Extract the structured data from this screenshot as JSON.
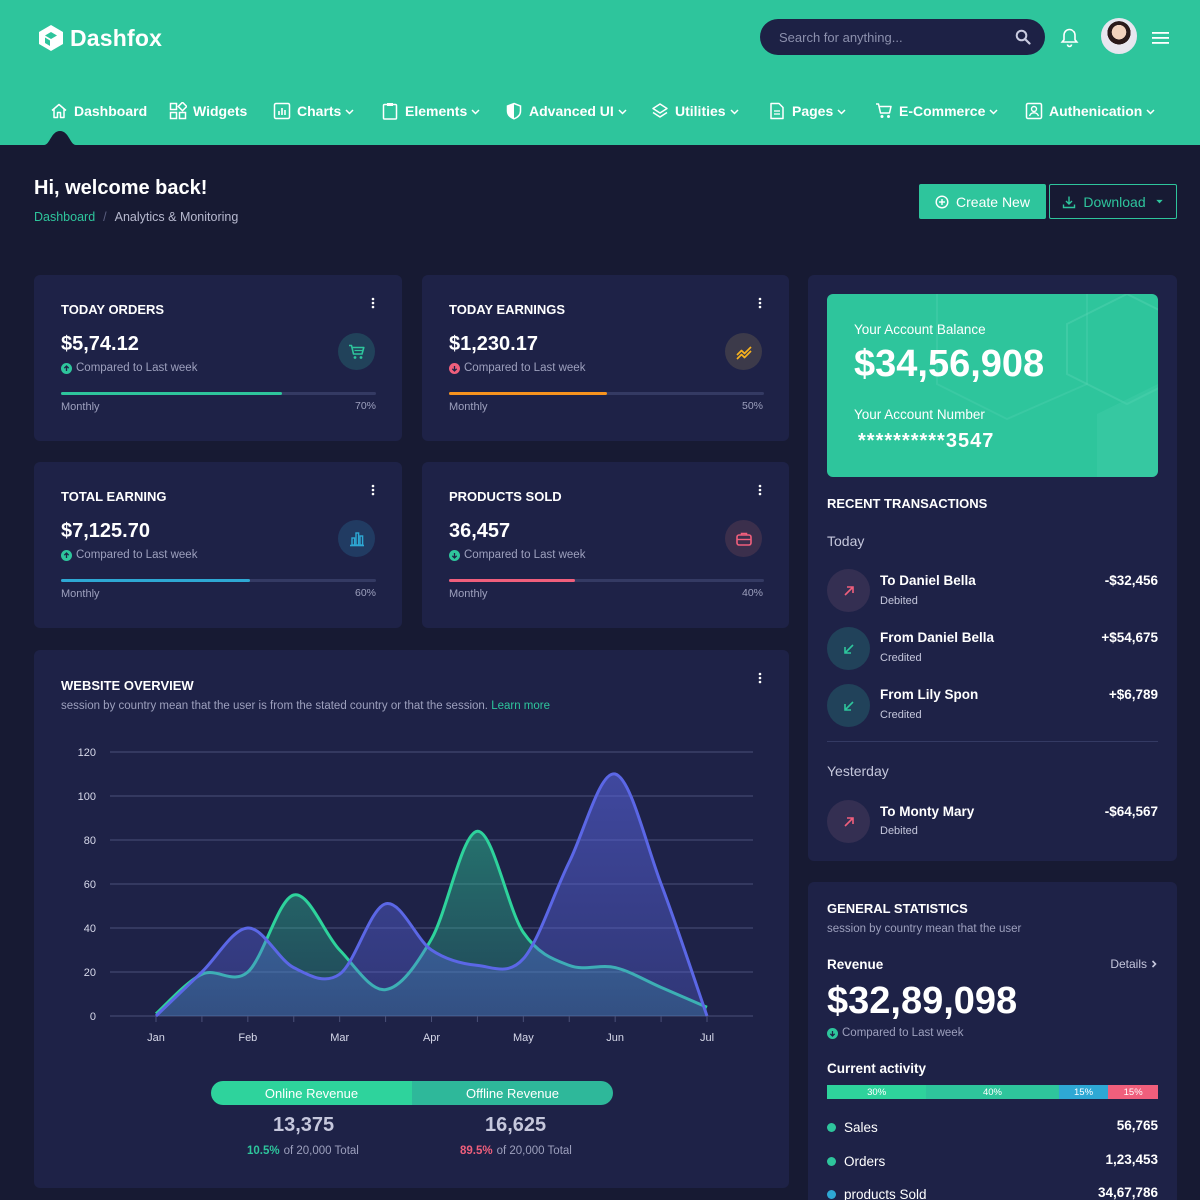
{
  "brand": {
    "name": "Dashfox"
  },
  "search": {
    "placeholder": "Search for anything..."
  },
  "nav": [
    {
      "label": "Dashboard",
      "icon": "home-icon"
    },
    {
      "label": "Widgets",
      "icon": "widgets-icon"
    },
    {
      "label": "Charts",
      "icon": "charts-icon"
    },
    {
      "label": "Elements",
      "icon": "clipboard-icon"
    },
    {
      "label": "Advanced UI",
      "icon": "shield-icon"
    },
    {
      "label": "Utilities",
      "icon": "layers-icon"
    },
    {
      "label": "Pages",
      "icon": "document-icon"
    },
    {
      "label": "E-Commerce",
      "icon": "cart-icon"
    },
    {
      "label": "Authenication",
      "icon": "user-icon"
    }
  ],
  "page": {
    "title": "Hi, welcome back!",
    "breadcrumb": [
      "Dashboard",
      "Analytics & Monitoring"
    ],
    "create_label": "Create New",
    "download_label": "Download"
  },
  "stats": [
    {
      "title": "TODAY ORDERS",
      "value": "$5,74.12",
      "compare": "Compared to Last week",
      "trend": "up",
      "bar_label": "Monthly",
      "percent_label": "70%",
      "percent": 70,
      "color": "#2ec59c",
      "icon": "cart-icon"
    },
    {
      "title": "TODAY EARNINGS",
      "value": "$1,230.17",
      "compare": "Compared to Last week",
      "trend": "down",
      "bar_label": "Monthly",
      "percent_label": "50%",
      "percent": 50,
      "color": "#f7931e",
      "icon": "trend-icon"
    },
    {
      "title": "TOTAL EARNING",
      "value": "$7,125.70",
      "compare": "Compared to Last week",
      "trend": "up",
      "bar_label": "Monthly",
      "percent_label": "60%",
      "percent": 60,
      "color": "#2ea8d4",
      "icon": "bar-chart-icon"
    },
    {
      "title": "PRODUCTS SOLD",
      "value": "36,457",
      "compare": "Compared to Last week",
      "trend": "up",
      "bar_label": "Monthly",
      "percent_label": "40%",
      "percent": 40,
      "color": "#f05f7c",
      "icon": "briefcase-icon"
    }
  ],
  "overview": {
    "title": "WEBSITE OVERVIEW",
    "subtitle": "session by country mean that the user is from the stated country or that the session.",
    "learn_more": "Learn more",
    "online_label": "Online Revenue",
    "offline_label": "Offline Revenue",
    "online_value": "13,375",
    "offline_value": "16,625",
    "online_pct": "10.5%",
    "offline_pct": "89.5%",
    "online_total": "of 20,000 Total",
    "offline_total": "of 20,000 Total"
  },
  "chart_data": {
    "type": "area",
    "categories": [
      "Jan",
      "Feb",
      "Mar",
      "Apr",
      "May",
      "Jun",
      "Jul"
    ],
    "x": [
      0,
      0.5,
      1,
      1.5,
      2,
      2.5,
      3,
      3.5,
      4,
      4.5,
      5,
      5.5,
      6
    ],
    "series": [
      {
        "color": "#2ed39c",
        "values": [
          1,
          19,
          20,
          55,
          30,
          12,
          35,
          84,
          38,
          23,
          22,
          13,
          4
        ]
      },
      {
        "color": "#5b67e6",
        "values": [
          0,
          20,
          40,
          22,
          19,
          51,
          30,
          23,
          26,
          70,
          110,
          60,
          0
        ]
      }
    ],
    "ylim": [
      0,
      120
    ],
    "yticks": [
      0,
      20,
      40,
      60,
      80,
      100,
      120
    ],
    "grid": true
  },
  "balance": {
    "label": "Your Account Balance",
    "value": "$34,56,908",
    "account_label": "Your Account Number",
    "account_value": "**********3547"
  },
  "transactions": {
    "title": "RECENT TRANSACTIONS",
    "groups": [
      "Today",
      "Yesterday"
    ],
    "items": [
      {
        "name": "To Daniel Bella",
        "status": "Debited",
        "amount": "-$32,456",
        "type": "debit"
      },
      {
        "name": "From Daniel Bella",
        "status": "Credited",
        "amount": "+$54,675",
        "type": "credit"
      },
      {
        "name": "From Lily Spon",
        "status": "Credited",
        "amount": "+$6,789",
        "type": "credit"
      },
      {
        "name": "To Monty Mary",
        "status": "Debited",
        "amount": "-$64,567",
        "type": "debit"
      }
    ]
  },
  "general": {
    "title": "GENERAL STATISTICS",
    "subtitle": "session by country mean that the user",
    "revenue_label": "Revenue",
    "details_label": "Details",
    "revenue_value": "$32,89,098",
    "compare": "Compared to Last week",
    "activity_label": "Current activity",
    "segments": [
      {
        "label": "30%",
        "value": 30,
        "color": "#2ed39c"
      },
      {
        "label": "40%",
        "value": 40,
        "color": "#2ec59c"
      },
      {
        "label": "15%",
        "value": 15,
        "color": "#2ea8d4"
      },
      {
        "label": "15%",
        "value": 15,
        "color": "#f05f7c"
      }
    ],
    "legend": [
      {
        "name": "Sales",
        "value": "56,765"
      },
      {
        "name": "Orders",
        "value": "1,23,453"
      },
      {
        "name": "products Sold",
        "value": "34,67,786"
      }
    ]
  }
}
